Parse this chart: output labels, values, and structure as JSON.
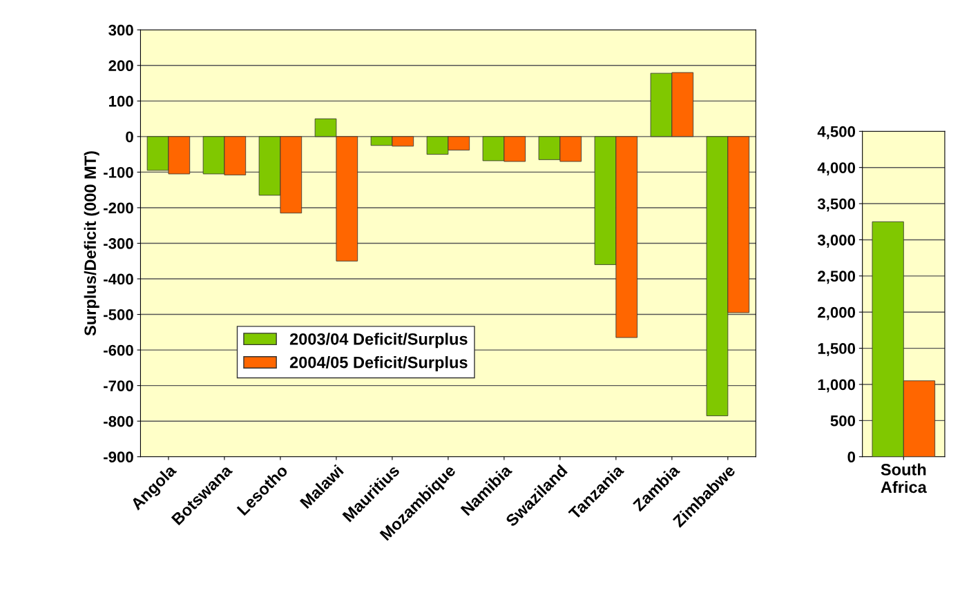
{
  "chart_data": [
    {
      "type": "bar",
      "ylabel": "Surplus/Deficit (000 MT)",
      "categories": [
        "Angola",
        "Botswana",
        "Lesotho",
        "Malawi",
        "Mauritius",
        "Mozambique",
        "Namibia",
        "Swaziland",
        "Tanzania",
        "Zambia",
        "Zimbabwe"
      ],
      "series": [
        {
          "name": "2003/04 Deficit/Surplus",
          "color": "#80c800",
          "values": [
            -95,
            -105,
            -165,
            50,
            -25,
            -50,
            -68,
            -65,
            -360,
            178,
            -785
          ]
        },
        {
          "name": "2004/05 Deficit/Surplus",
          "color": "#ff6600",
          "values": [
            -105,
            -108,
            -215,
            -350,
            -27,
            -38,
            -70,
            -70,
            -565,
            180,
            -495
          ]
        }
      ],
      "ylim": [
        -900,
        300
      ],
      "yticks": [
        -900,
        -800,
        -700,
        -600,
        -500,
        -400,
        -300,
        -200,
        -100,
        0,
        100,
        200,
        300
      ],
      "grid": "y",
      "legend": "center"
    },
    {
      "type": "bar",
      "categories": [
        "South Africa"
      ],
      "series": [
        {
          "color": "#80c800",
          "values": [
            3250
          ]
        },
        {
          "color": "#ff6600",
          "values": [
            1050
          ]
        }
      ],
      "ylim": [
        0,
        4500
      ],
      "yticks": [
        0,
        500,
        {
          "value": 1000,
          "label": "1,000"
        },
        {
          "value": 1500,
          "label": "1,500"
        },
        {
          "value": 2000,
          "label": "2,000"
        },
        {
          "value": 2500,
          "label": "2,500"
        },
        {
          "value": 3000,
          "label": "3,000"
        },
        {
          "value": 3500,
          "label": "3,500"
        },
        {
          "value": 4000,
          "label": "4,000"
        },
        {
          "value": 4500,
          "label": "4,500"
        }
      ],
      "grid": "y"
    }
  ]
}
